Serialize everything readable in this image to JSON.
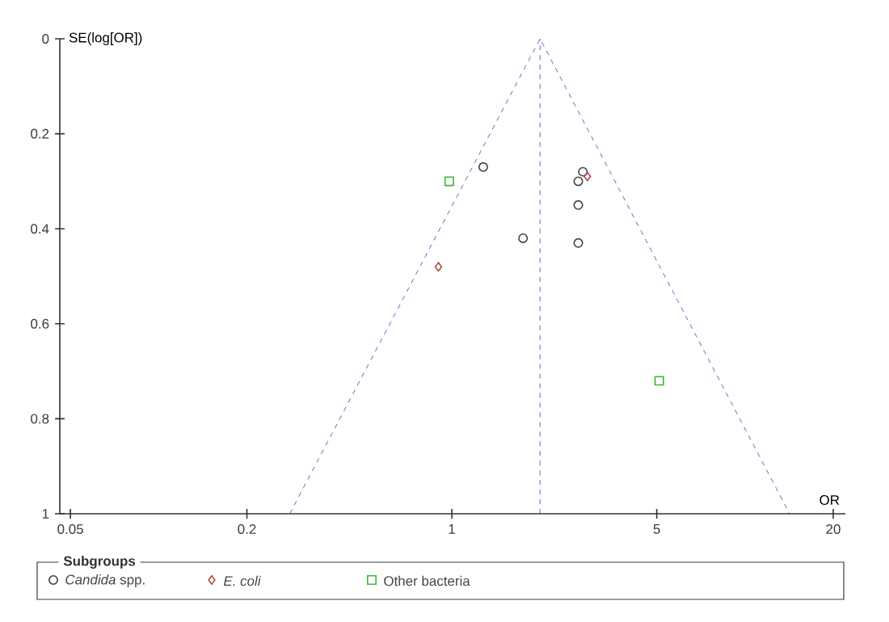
{
  "chart_data": {
    "type": "scatter",
    "xlabel": "OR",
    "ylabel": "SE(log[OR])",
    "log": "x",
    "xlim": [
      0.046,
      22
    ],
    "ylim": [
      1,
      0
    ],
    "xticks": [
      0.05,
      0.2,
      1,
      5,
      20
    ],
    "yticks": [
      0,
      0.2,
      0.4,
      0.6,
      0.8,
      1
    ],
    "legend": "bottom",
    "legend_title": "Subgroups",
    "grid": false,
    "series": [
      {
        "name": "*Candida* spp.",
        "color": "#404040",
        "marker": "circle",
        "x": [
          1.28,
          2.8,
          2.7,
          2.7,
          1.75,
          2.7
        ],
        "values": [
          0.27,
          0.28,
          0.3,
          0.35,
          0.42,
          0.43
        ]
      },
      {
        "name": "*E. coli*",
        "color": "#b04848",
        "marker": "diamond",
        "x": [
          2.9,
          0.9
        ],
        "values": [
          0.29,
          0.48
        ]
      },
      {
        "name": "Other bacteria",
        "color": "#3cb43c",
        "marker": "square",
        "x": [
          0.98,
          5.1
        ],
        "values": [
          0.3,
          0.72
        ]
      },
      {
        "type": "line",
        "color": "#3c3cb4",
        "line_style": "dashed",
        "marker": "none",
        "x": [
          0.28,
          2.0,
          14.2
        ],
        "values": [
          1,
          0,
          1
        ]
      }
    ],
    "ref_lines": [
      {
        "axis": "x",
        "value": 2.0,
        "color": "#3c3cb4",
        "line_style": "dashed"
      }
    ]
  }
}
